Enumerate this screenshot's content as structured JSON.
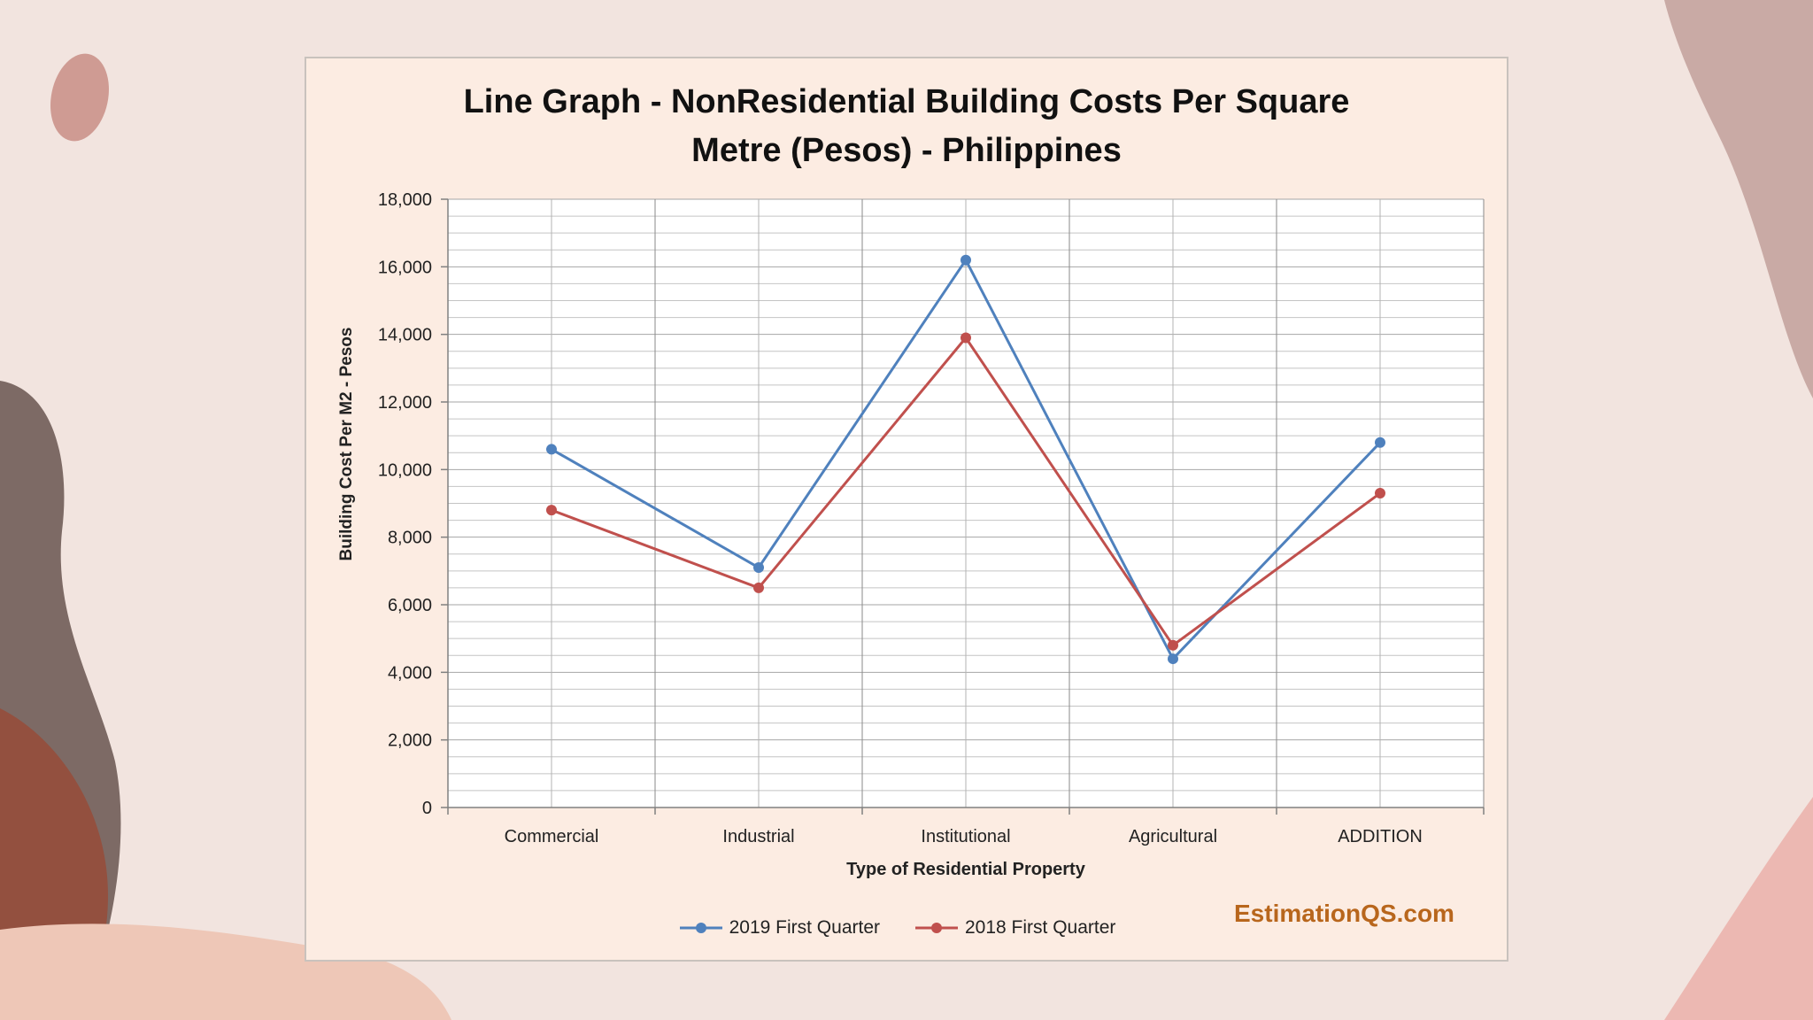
{
  "chart_data": {
    "type": "line",
    "title_lines": [
      "Line Graph - NonResidential Building Costs Per Square",
      "Metre (Pesos) - Philippines"
    ],
    "xlabel": "Type of Residential Property",
    "ylabel": "Building Cost Per M2 - Pesos",
    "categories": [
      "Commercial",
      "Industrial",
      "Institutional",
      "Agricultural",
      "ADDITION"
    ],
    "ylim": [
      0,
      18000
    ],
    "yticks": [
      0,
      2000,
      4000,
      6000,
      8000,
      10000,
      12000,
      14000,
      16000,
      18000
    ],
    "ytick_labels": [
      "0",
      "2,000",
      "4,000",
      "6,000",
      "8,000",
      "10,000",
      "12,000",
      "14,000",
      "16,000",
      "18,000"
    ],
    "grid": true,
    "legend_position": "bottom",
    "series": [
      {
        "name": "2019 First Quarter",
        "color": "#4f81bd",
        "values": [
          10600,
          7100,
          16200,
          4400,
          10800
        ]
      },
      {
        "name": "2018 First Quarter",
        "color": "#c0504d",
        "values": [
          8800,
          6500,
          13900,
          4800,
          9300
        ]
      }
    ]
  },
  "brand": "EstimationQS.com"
}
